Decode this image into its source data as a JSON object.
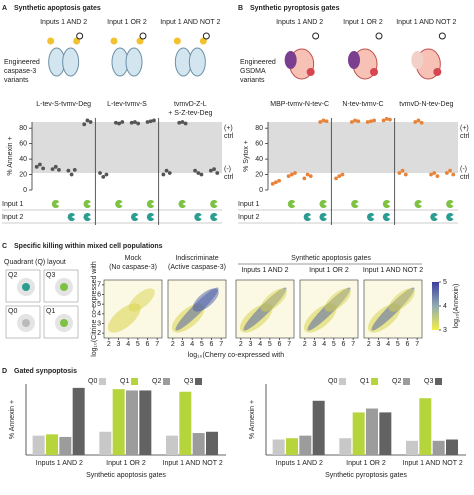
{
  "chart_data": [
    {
      "type": "strip",
      "letter": "A",
      "title": "Synthetic apoptosis gates",
      "engineered": [
        "Engineered",
        "caspase-3",
        "variants"
      ],
      "accent": "#2b8c8c",
      "color": "#555555",
      "ylabel": "% Annexin +",
      "ylim": [
        0,
        88
      ],
      "yticks": [
        0,
        20,
        40,
        60,
        80
      ],
      "band": [
        22,
        88
      ],
      "controls": [
        [
          "(+)",
          "ctrl"
        ],
        [
          "(-)",
          "ctrl"
        ]
      ],
      "input_rows": [
        "Input 1",
        "Input 2"
      ],
      "input1": [
        false,
        true,
        false,
        true
      ],
      "input2": [
        false,
        false,
        true,
        true
      ],
      "input_colors": [
        "#7dc242",
        "#2a9d8f"
      ],
      "series": [
        {
          "name": "Inputs 1 AND 2",
          "construct": [
            "L-tev-S-tvmv-Deg"
          ],
          "values": [
            [
              30,
              33,
              28
            ],
            [
              27,
              30,
              26
            ],
            [
              25,
              20,
              26
            ],
            [
              85,
              90,
              88
            ]
          ]
        },
        {
          "name": "Input 1 OR 2",
          "construct": [
            "L-tev-tvmv-S"
          ],
          "values": [
            [
              22,
              17,
              20
            ],
            [
              87,
              86,
              88
            ],
            [
              87,
              88,
              86
            ],
            [
              88,
              89,
              90
            ]
          ]
        },
        {
          "name": "Input 1 AND NOT 2",
          "construct": [
            "tvmvD-Z-L",
            "+ S-Z-tev-Deg"
          ],
          "values": [
            [
              20,
              25,
              22
            ],
            [
              87,
              88,
              86
            ],
            [
              25,
              22,
              20
            ],
            [
              25,
              27,
              22
            ]
          ]
        }
      ]
    },
    {
      "type": "strip",
      "letter": "B",
      "title": "Synthetic pyroptosis gates",
      "engineered": [
        "Engineered",
        "GSDMA",
        "variants"
      ],
      "accent": "#a0422c",
      "color": "#e8833a",
      "ylabel": "% Sytox +",
      "ylim": [
        0,
        88
      ],
      "yticks": [
        0,
        20,
        40,
        60,
        80
      ],
      "band": [
        22,
        88
      ],
      "controls": [
        [
          "(+)",
          "ctrl"
        ],
        [
          "(-)",
          "ctrl"
        ]
      ],
      "input_rows": [
        "Input 1",
        "Input 2"
      ],
      "input1": [
        false,
        true,
        false,
        true
      ],
      "input2": [
        false,
        false,
        true,
        true
      ],
      "input_colors": [
        "#7dc242",
        "#2a9d8f"
      ],
      "series": [
        {
          "name": "Inputs 1 AND 2",
          "construct": [
            "MBP-tvmv-N-tev-C"
          ],
          "values": [
            [
              8,
              10,
              12
            ],
            [
              18,
              20,
              22
            ],
            [
              15,
              20,
              18
            ],
            [
              88,
              90,
              89
            ]
          ]
        },
        {
          "name": "Input 1 OR 2",
          "construct": [
            "N-tev-tvmv-C"
          ],
          "values": [
            [
              15,
              18,
              20
            ],
            [
              88,
              90,
              89
            ],
            [
              88,
              89,
              90
            ],
            [
              90,
              92,
              91
            ]
          ]
        },
        {
          "name": "Input 1 AND NOT 2",
          "construct": [
            "tvmvD-N-tev-Deg"
          ],
          "values": [
            [
              22,
              25,
              20
            ],
            [
              88,
              90,
              87
            ],
            [
              20,
              22,
              18
            ],
            [
              22,
              25,
              20
            ]
          ]
        }
      ]
    },
    {
      "type": "bar",
      "ylabel": "% Annexin +",
      "xlabel": "Synthetic apoptosis gates",
      "accent": "#2b8c8c",
      "ylim": [
        0,
        55
      ],
      "categories": [
        "Inputs 1 AND 2",
        "Input 1 OR 2",
        "Input 1 AND NOT 2"
      ],
      "series": [
        {
          "name": "Q0",
          "color": "#c8c8c8",
          "values": [
            15,
            18,
            15
          ]
        },
        {
          "name": "Q1",
          "color": "#b6d53c",
          "values": [
            16,
            51,
            49
          ]
        },
        {
          "name": "Q2",
          "color": "#9c9c9c",
          "values": [
            14,
            50,
            17
          ]
        },
        {
          "name": "Q3",
          "color": "#626262",
          "values": [
            52,
            50,
            18
          ]
        }
      ]
    },
    {
      "type": "bar",
      "ylabel": "% Annexin +",
      "xlabel": "Synthetic pyroptosis gates",
      "accent": "#a0422c",
      "ylim": [
        0,
        55
      ],
      "categories": [
        "Inputs 1 AND 2",
        "Input 1 OR 2",
        "Input 1 AND NOT 2"
      ],
      "series": [
        {
          "name": "Q0",
          "color": "#c8c8c8",
          "values": [
            12,
            13,
            11
          ]
        },
        {
          "name": "Q1",
          "color": "#b6d53c",
          "values": [
            13,
            33,
            44
          ]
        },
        {
          "name": "Q2",
          "color": "#9c9c9c",
          "values": [
            15,
            36,
            11
          ]
        },
        {
          "name": "Q3",
          "color": "#626262",
          "values": [
            42,
            33,
            12
          ]
        }
      ]
    }
  ],
  "panel_c": {
    "letter": "C",
    "title": "Specific killing within mixed cell populations",
    "quadrant_title": "Quadrant (Q) layout",
    "quadrants": [
      "Q2",
      "Q3",
      "Q0",
      "Q1"
    ],
    "plots": [
      [
        "Mock",
        "(No caspase-3)"
      ],
      [
        "Indiscriminate",
        "(Active caspase-3)"
      ],
      [
        "Inputs 1 AND 2"
      ],
      [
        "Input 1 OR 2"
      ],
      [
        "Input 1 AND NOT 2"
      ]
    ],
    "group_title": "Synthetic apoptosis gates",
    "lim": [
      1.5,
      7.5
    ],
    "ticks": [
      2,
      3,
      4,
      5,
      6,
      7
    ],
    "ylabel": "log₁₀(Citrine co-expressed with",
    "xlabel": "log₁₀(Cherry co-expressed with",
    "colorbar": {
      "label": "log₁₀(Annexin)",
      "ticks": [
        3,
        4,
        5
      ]
    }
  },
  "panel_d": {
    "letter": "D",
    "title": "Gated synpoptosis"
  }
}
